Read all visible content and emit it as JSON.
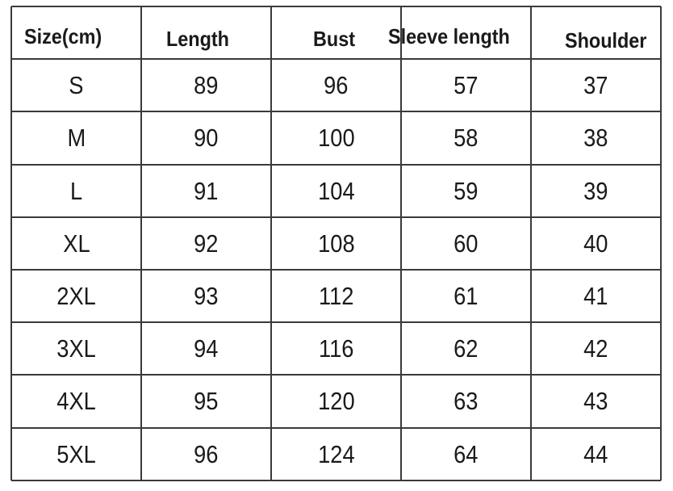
{
  "table": {
    "headers": [
      "Size(cm)",
      "Length",
      "Bust",
      "Sleeve length",
      "Shoulder"
    ],
    "rows": [
      [
        "S",
        "89",
        "96",
        "57",
        "37"
      ],
      [
        "M",
        "90",
        "100",
        "58",
        "38"
      ],
      [
        "L",
        "91",
        "104",
        "59",
        "39"
      ],
      [
        "XL",
        "92",
        "108",
        "60",
        "40"
      ],
      [
        "2XL",
        "93",
        "112",
        "61",
        "41"
      ],
      [
        "3XL",
        "94",
        "116",
        "62",
        "42"
      ],
      [
        "4XL",
        "95",
        "120",
        "63",
        "43"
      ],
      [
        "5XL",
        "96",
        "124",
        "64",
        "44"
      ]
    ],
    "line_color": "#3a3a3a"
  }
}
